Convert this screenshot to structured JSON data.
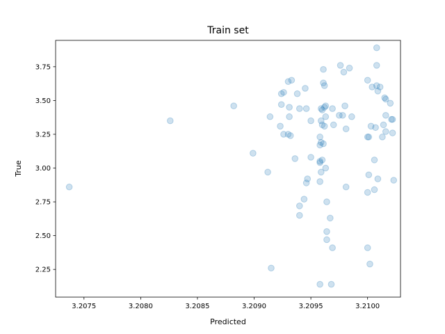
{
  "chart_data": {
    "type": "scatter",
    "title": "Train set",
    "xlabel": "Predicted",
    "ylabel": "True",
    "xlim": [
      3.20725,
      3.21029
    ],
    "ylim": [
      2.045,
      3.945
    ],
    "xticks": [
      "3.2075",
      "3.2080",
      "3.2085",
      "3.2090",
      "3.2095",
      "3.2100"
    ],
    "xtick_values": [
      3.2075,
      3.208,
      3.2085,
      3.209,
      3.2095,
      3.21
    ],
    "yticks": [
      "2.25",
      "2.50",
      "2.75",
      "3.00",
      "3.25",
      "3.50",
      "3.75"
    ],
    "ytick_values": [
      2.25,
      2.5,
      2.75,
      3.0,
      3.25,
      3.5,
      3.75
    ],
    "grid": false,
    "color": "#1f77b4",
    "alpha": 0.22,
    "points": [
      [
        3.20737,
        2.86
      ],
      [
        3.20826,
        3.35
      ],
      [
        3.20882,
        3.46
      ],
      [
        3.20899,
        3.11
      ],
      [
        3.20912,
        2.97
      ],
      [
        3.20915,
        2.26
      ],
      [
        3.20914,
        3.38
      ],
      [
        3.20924,
        3.55
      ],
      [
        3.20926,
        3.56
      ],
      [
        3.2093,
        3.64
      ],
      [
        3.20933,
        3.65
      ],
      [
        3.20938,
        3.55
      ],
      [
        3.20924,
        3.47
      ],
      [
        3.20931,
        3.45
      ],
      [
        3.2094,
        3.44
      ],
      [
        3.20946,
        3.44
      ],
      [
        3.20945,
        3.59
      ],
      [
        3.20926,
        3.25
      ],
      [
        3.2093,
        3.25
      ],
      [
        3.20932,
        3.24
      ],
      [
        3.20923,
        3.31
      ],
      [
        3.20931,
        3.38
      ],
      [
        3.20936,
        3.07
      ],
      [
        3.20946,
        2.89
      ],
      [
        3.20947,
        2.92
      ],
      [
        3.20944,
        2.77
      ],
      [
        3.2094,
        2.72
      ],
      [
        3.2094,
        2.65
      ],
      [
        3.2095,
        3.35
      ],
      [
        3.2095,
        3.08
      ],
      [
        3.20958,
        3.23
      ],
      [
        3.20958,
        3.17
      ],
      [
        3.20961,
        3.18
      ],
      [
        3.20959,
        3.19
      ],
      [
        3.20958,
        3.05
      ],
      [
        3.2096,
        3.06
      ],
      [
        3.20958,
        3.04
      ],
      [
        3.20959,
        2.97
      ],
      [
        3.20958,
        2.9
      ],
      [
        3.20963,
        3.0
      ],
      [
        3.20964,
        2.75
      ],
      [
        3.20964,
        2.53
      ],
      [
        3.20964,
        2.47
      ],
      [
        3.20967,
        2.63
      ],
      [
        3.20969,
        2.41
      ],
      [
        3.20958,
        2.14
      ],
      [
        3.20968,
        2.14
      ],
      [
        3.20961,
        3.73
      ],
      [
        3.20961,
        3.63
      ],
      [
        3.20962,
        3.61
      ],
      [
        3.20959,
        3.44
      ],
      [
        3.2096,
        3.43
      ],
      [
        3.20962,
        3.45
      ],
      [
        3.20963,
        3.46
      ],
      [
        3.20959,
        3.35
      ],
      [
        3.2096,
        3.32
      ],
      [
        3.20962,
        3.31
      ],
      [
        3.20963,
        3.38
      ],
      [
        3.20969,
        3.44
      ],
      [
        3.2097,
        3.32
      ],
      [
        3.20975,
        3.39
      ],
      [
        3.20976,
        3.76
      ],
      [
        3.20979,
        3.71
      ],
      [
        3.20984,
        3.74
      ],
      [
        3.20978,
        3.39
      ],
      [
        3.2098,
        3.46
      ],
      [
        3.20981,
        3.29
      ],
      [
        3.20981,
        2.86
      ],
      [
        3.20986,
        3.38
      ],
      [
        3.21,
        3.65
      ],
      [
        3.21,
        3.23
      ],
      [
        3.21001,
        3.23
      ],
      [
        3.21003,
        3.31
      ],
      [
        3.21001,
        2.95
      ],
      [
        3.21,
        2.82
      ],
      [
        3.21006,
        2.84
      ],
      [
        3.21006,
        3.06
      ],
      [
        3.21007,
        3.3
      ],
      [
        3.21008,
        3.89
      ],
      [
        3.21008,
        3.76
      ],
      [
        3.21008,
        3.61
      ],
      [
        3.21009,
        3.57
      ],
      [
        3.21011,
        3.6
      ],
      [
        3.21013,
        3.23
      ],
      [
        3.21014,
        3.32
      ],
      [
        3.21015,
        3.52
      ],
      [
        3.21016,
        3.51
      ],
      [
        3.21016,
        3.39
      ],
      [
        3.21016,
        3.27
      ],
      [
        3.2102,
        3.48
      ],
      [
        3.21021,
        3.36
      ],
      [
        3.21022,
        3.36
      ],
      [
        3.21022,
        3.26
      ],
      [
        3.21023,
        2.91
      ],
      [
        3.21009,
        2.92
      ],
      [
        3.21,
        2.41
      ],
      [
        3.21002,
        2.29
      ],
      [
        3.21004,
        3.6
      ]
    ]
  }
}
